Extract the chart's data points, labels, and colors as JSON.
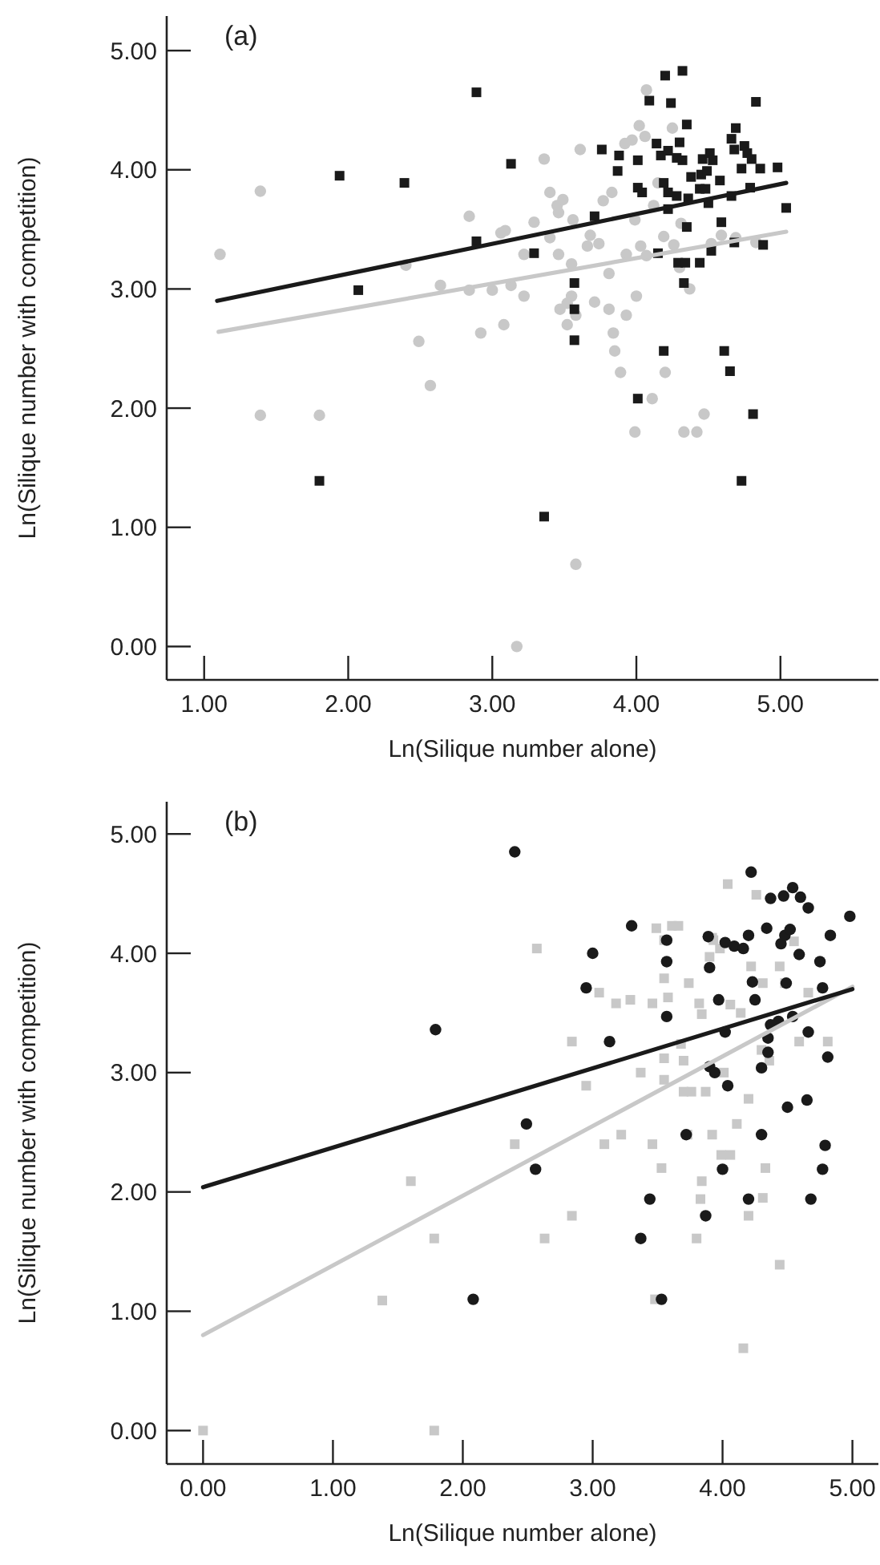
{
  "chart_data": [
    {
      "type": "scatter",
      "xlabel": "Ln(Silique number alone)",
      "ylabel": "Ln(Silique number with competition)",
      "annotations": [
        "(a)"
      ],
      "xlim": [
        0.74,
        5.68
      ],
      "ylim": [
        -0.28,
        5.29
      ],
      "xticks": [
        {
          "value": 1,
          "label": "1.00"
        },
        {
          "value": 2,
          "label": "2.00"
        },
        {
          "value": 3,
          "label": "3.00"
        },
        {
          "value": 4,
          "label": "4.00"
        },
        {
          "value": 5,
          "label": "5.00"
        }
      ],
      "yticks": [
        {
          "value": 0,
          "label": "0.00"
        },
        {
          "value": 1,
          "label": "1.00"
        },
        {
          "value": 2,
          "label": "2.00"
        },
        {
          "value": 3,
          "label": "3.00"
        },
        {
          "value": 4,
          "label": "4.00"
        },
        {
          "value": 5,
          "label": "5.00"
        }
      ],
      "series": [
        {
          "type": "scatter",
          "marker": "circle",
          "color": "#c8c8c8",
          "x": [
            1.11,
            1.39,
            1.39,
            1.8,
            2.4,
            2.49,
            2.57,
            2.64,
            2.84,
            2.84,
            2.92,
            3.0,
            3.08,
            3.06,
            3.09,
            3.13,
            3.22,
            3.22,
            3.29,
            3.36,
            3.4,
            3.45,
            3.49,
            3.46,
            3.46,
            3.56,
            3.55,
            3.61,
            3.55,
            3.52,
            3.47,
            3.52,
            3.58,
            3.66,
            3.74,
            3.68,
            3.77,
            3.83,
            3.81,
            3.71,
            3.81,
            3.84,
            3.85,
            3.89,
            3.93,
            3.93,
            4.0,
            3.99,
            3.92,
            3.97,
            4.02,
            4.06,
            4.07,
            4.15,
            4.12,
            4.19,
            4.07,
            4.25,
            4.26,
            4.31,
            4.3,
            4.37,
            4.2,
            4.11,
            3.99,
            4.33,
            4.42,
            4.47,
            3.58,
            3.17,
            4.52,
            4.59,
            4.69,
            4.83,
            4.03,
            3.4
          ],
          "values": [
            3.29,
            3.82,
            1.94,
            1.94,
            3.2,
            2.56,
            2.19,
            3.03,
            2.99,
            3.61,
            2.63,
            2.99,
            2.7,
            3.47,
            3.49,
            3.03,
            2.94,
            3.29,
            3.56,
            4.09,
            3.81,
            3.7,
            3.75,
            3.64,
            3.29,
            3.58,
            3.21,
            4.17,
            2.94,
            2.88,
            2.83,
            2.7,
            2.78,
            3.36,
            3.38,
            3.45,
            3.74,
            3.81,
            3.13,
            2.89,
            2.83,
            2.63,
            2.48,
            2.3,
            2.78,
            3.29,
            2.94,
            3.58,
            4.22,
            4.25,
            4.37,
            4.28,
            4.67,
            3.89,
            3.7,
            3.44,
            3.28,
            4.35,
            3.37,
            3.55,
            3.18,
            3.0,
            2.3,
            2.08,
            1.8,
            1.8,
            1.8,
            1.95,
            0.69,
            0.0,
            3.38,
            3.45,
            3.43,
            3.39,
            3.36,
            3.43
          ]
        },
        {
          "type": "scatter",
          "marker": "square",
          "color": "#1a1a1a",
          "x": [
            1.94,
            2.39,
            2.07,
            1.8,
            2.89,
            2.89,
            3.13,
            3.29,
            3.71,
            3.76,
            3.88,
            3.87,
            3.57,
            3.57,
            3.57,
            4.01,
            4.01,
            4.04,
            4.09,
            4.14,
            4.2,
            4.24,
            4.17,
            4.22,
            4.3,
            4.28,
            4.32,
            4.35,
            4.32,
            4.19,
            4.22,
            4.28,
            4.36,
            4.22,
            4.35,
            4.38,
            4.45,
            4.46,
            4.51,
            4.53,
            4.49,
            4.44,
            4.48,
            4.5,
            4.58,
            4.66,
            4.69,
            4.68,
            4.75,
            4.77,
            4.8,
            4.83,
            4.73,
            4.86,
            4.98,
            4.79,
            4.66,
            5.04,
            4.59,
            4.68,
            4.88,
            4.52,
            4.44,
            4.29,
            4.34,
            4.15,
            4.33,
            4.19,
            4.61,
            4.65,
            4.01,
            4.81,
            4.73,
            3.36
          ],
          "values": [
            3.95,
            3.89,
            2.99,
            1.39,
            4.65,
            3.4,
            4.05,
            3.3,
            3.61,
            4.17,
            4.12,
            3.99,
            3.05,
            2.83,
            2.57,
            4.08,
            3.85,
            3.81,
            4.58,
            4.22,
            4.79,
            4.56,
            4.12,
            4.16,
            4.23,
            4.1,
            4.08,
            4.38,
            4.83,
            3.89,
            3.81,
            3.78,
            3.76,
            3.67,
            3.52,
            3.94,
            3.96,
            4.09,
            4.14,
            4.08,
            3.99,
            3.84,
            3.84,
            3.72,
            3.91,
            4.26,
            4.35,
            4.17,
            4.2,
            4.14,
            4.09,
            4.57,
            4.01,
            4.01,
            4.02,
            3.85,
            3.78,
            3.68,
            3.56,
            3.39,
            3.37,
            3.32,
            3.22,
            3.22,
            3.22,
            3.3,
            3.05,
            2.48,
            2.48,
            2.31,
            2.08,
            1.95,
            1.39,
            1.09
          ]
        },
        {
          "type": "line",
          "color": "#c8c8c8",
          "x": [
            1.1,
            5.04
          ],
          "values": [
            2.64,
            3.48
          ]
        },
        {
          "type": "line",
          "color": "#1a1a1a",
          "x": [
            1.09,
            5.04
          ],
          "values": [
            2.9,
            3.89
          ]
        }
      ]
    },
    {
      "type": "scatter",
      "xlabel": "Ln(Silique number alone)",
      "ylabel": "Ln(Silique number with competition)",
      "annotations": [
        "(b)"
      ],
      "xlim": [
        -0.28,
        5.2
      ],
      "ylim": [
        -0.28,
        5.27
      ],
      "xticks": [
        {
          "value": 0,
          "label": "0.00"
        },
        {
          "value": 1,
          "label": "1.00"
        },
        {
          "value": 2,
          "label": "2.00"
        },
        {
          "value": 3,
          "label": "3.00"
        },
        {
          "value": 4,
          "label": "4.00"
        },
        {
          "value": 5,
          "label": "5.00"
        }
      ],
      "yticks": [
        {
          "value": 0,
          "label": "0.00"
        },
        {
          "value": 1,
          "label": "1.00"
        },
        {
          "value": 2,
          "label": "2.00"
        },
        {
          "value": 3,
          "label": "3.00"
        },
        {
          "value": 4,
          "label": "4.00"
        },
        {
          "value": 5,
          "label": "5.00"
        }
      ],
      "series": [
        {
          "type": "scatter",
          "marker": "square",
          "color": "#c8c8c8",
          "x": [
            0,
            1.78,
            1.38,
            1.78,
            1.6,
            2.57,
            2.4,
            2.63,
            2.84,
            2.84,
            2.95,
            3.05,
            3.09,
            3.18,
            3.22,
            3.29,
            3.37,
            3.46,
            3.46,
            3.49,
            3.53,
            3.55,
            3.55,
            3.55,
            3.55,
            3.58,
            3.61,
            3.66,
            3.7,
            3.7,
            3.74,
            3.68,
            3.76,
            3.82,
            3.84,
            3.87,
            3.84,
            3.83,
            3.8,
            3.92,
            3.9,
            3.93,
            3.98,
            3.99,
            4.06,
            4.01,
            4.06,
            4.11,
            4.14,
            4.04,
            4.2,
            4.2,
            4.16,
            4.22,
            4.26,
            4.31,
            4.3,
            4.31,
            4.33,
            4.36,
            4.44,
            4.44,
            4.48,
            4.55,
            4.59,
            4.66,
            4.81,
            3.48,
            3.73,
            3.92
          ],
          "values": [
            0,
            0,
            1.09,
            1.61,
            2.09,
            4.04,
            2.4,
            1.61,
            3.26,
            1.8,
            2.89,
            3.67,
            2.4,
            3.58,
            2.48,
            3.61,
            3.0,
            3.58,
            2.4,
            4.21,
            2.2,
            3.12,
            2.94,
            3.79,
            4.11,
            3.63,
            4.23,
            4.23,
            3.1,
            2.84,
            3.75,
            3.24,
            2.84,
            3.58,
            3.49,
            2.84,
            2.09,
            1.94,
            1.61,
            2.48,
            3.97,
            4.11,
            4.04,
            2.31,
            2.31,
            3.0,
            3.57,
            2.57,
            3.5,
            4.58,
            2.78,
            1.8,
            0.69,
            3.89,
            4.49,
            3.75,
            3.19,
            1.95,
            2.2,
            3.1,
            3.89,
            1.39,
            3.75,
            4.1,
            3.26,
            3.67,
            3.26,
            1.1,
            2.48,
            4.13
          ]
        },
        {
          "type": "scatter",
          "marker": "circle",
          "color": "#1a1a1a",
          "x": [
            1.79,
            2.4,
            2.08,
            2.49,
            2.56,
            2.95,
            3.0,
            3.13,
            3.3,
            3.44,
            3.37,
            3.53,
            3.57,
            3.57,
            3.57,
            3.72,
            3.89,
            3.9,
            3.97,
            3.9,
            3.94,
            4.04,
            4.02,
            4.0,
            3.87,
            4.02,
            4.09,
            4.16,
            4.2,
            4.22,
            4.23,
            4.25,
            4.3,
            4.3,
            4.2,
            4.35,
            4.35,
            4.37,
            4.34,
            4.37,
            4.43,
            4.47,
            4.54,
            4.6,
            4.66,
            4.45,
            4.48,
            4.52,
            4.59,
            4.49,
            4.54,
            4.5,
            4.65,
            4.66,
            4.75,
            4.83,
            4.98,
            4.77,
            4.81,
            4.79,
            4.77,
            4.68
          ],
          "values": [
            3.36,
            4.85,
            1.1,
            2.57,
            2.19,
            3.71,
            4.0,
            3.26,
            4.23,
            1.94,
            1.61,
            1.1,
            4.11,
            3.93,
            3.47,
            2.48,
            4.14,
            3.88,
            3.61,
            3.05,
            3.0,
            2.89,
            3.34,
            2.19,
            1.8,
            4.09,
            4.06,
            4.04,
            4.15,
            4.68,
            3.76,
            3.61,
            3.04,
            2.48,
            1.94,
            3.17,
            3.29,
            4.46,
            4.21,
            3.4,
            3.43,
            4.48,
            4.55,
            4.47,
            4.38,
            4.08,
            4.15,
            4.2,
            3.99,
            3.75,
            3.47,
            2.71,
            2.77,
            3.34,
            3.93,
            4.15,
            4.31,
            3.71,
            3.13,
            2.39,
            2.19,
            1.94
          ]
        },
        {
          "type": "line",
          "color": "#c8c8c8",
          "x": [
            0,
            5
          ],
          "values": [
            0.8,
            3.72
          ]
        },
        {
          "type": "line",
          "color": "#1a1a1a",
          "x": [
            0,
            5
          ],
          "values": [
            2.04,
            3.7
          ]
        }
      ]
    }
  ]
}
